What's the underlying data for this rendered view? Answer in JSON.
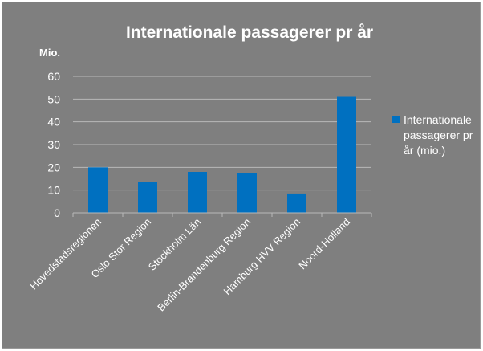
{
  "chart_data": {
    "type": "bar",
    "title": "Internationale passagerer pr år",
    "ylabel": "Mio.",
    "xlabel": "",
    "categories": [
      "Hovedstadsregionen",
      "Oslo Stor Region",
      "Stockholm Län",
      "Berlin-Brandenburg Region",
      "Hamburg HVV Region",
      "Noord-Holland"
    ],
    "series": [
      {
        "name": "Internationale passagerer pr år (mio.)",
        "values": [
          20,
          13.5,
          18,
          17.5,
          8.5,
          51
        ]
      }
    ],
    "legend_lines": [
      "Internationale",
      "passagerer pr",
      "år (mio.)"
    ],
    "ylim": [
      0,
      60
    ],
    "yticks": [
      0,
      10,
      20,
      30,
      40,
      50,
      60
    ],
    "grid": true,
    "legend_position": "right",
    "colors": {
      "background": "#7f7f7f",
      "bar": "#0070c0",
      "gridline": "#b8b8b8",
      "text": "#ffffff"
    }
  }
}
